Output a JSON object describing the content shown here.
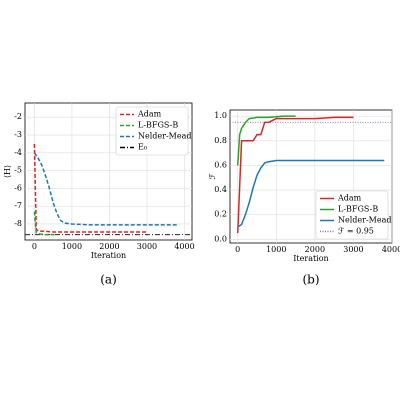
{
  "chart_data": [
    {
      "type": "line",
      "caption": "(a)",
      "x_label": "Iteration",
      "y_label": "⟨H⟩",
      "dashed": true,
      "legend": "upper right",
      "xlim": [
        -250,
        4200
      ],
      "xticks": [
        0,
        1000,
        2000,
        3000,
        4000
      ],
      "ylim": [
        -8.9,
        -1.2
      ],
      "yticks": [
        -2,
        -3,
        -4,
        -5,
        -6,
        -7,
        -8
      ],
      "series": [
        {
          "name": "Adam",
          "color": "#d62728",
          "x": [
            0,
            50,
            100,
            200,
            500,
            1000,
            2000,
            3000
          ],
          "values": [
            -3.5,
            -8.3,
            -8.4,
            -8.4,
            -8.45,
            -8.45,
            -8.45,
            -8.45
          ]
        },
        {
          "name": "L-BFGS-B",
          "color": "#2ca02c",
          "x": [
            0,
            50,
            100,
            300,
            600
          ],
          "values": [
            -7.3,
            -8.5,
            -8.55,
            -8.6,
            -8.6
          ]
        },
        {
          "name": "Nelder-Mead",
          "color": "#1f77b4",
          "x": [
            0,
            100,
            200,
            300,
            400,
            500,
            600,
            700,
            800,
            1000,
            1500,
            2000,
            3000,
            3800
          ],
          "values": [
            -4.0,
            -4.3,
            -4.7,
            -5.3,
            -6.0,
            -6.8,
            -7.4,
            -7.8,
            -7.95,
            -8.0,
            -8.05,
            -8.05,
            -8.05,
            -8.05
          ]
        }
      ],
      "reference_line": {
        "name": "E₀",
        "value": -8.6,
        "color": "#000000",
        "style": "dashdot"
      }
    },
    {
      "type": "line",
      "caption": "(b)",
      "x_label": "Iteration",
      "y_label": "ℱ",
      "dashed": false,
      "legend": "lower right",
      "xlim": [
        -200,
        4000
      ],
      "xticks": [
        0,
        1000,
        2000,
        3000,
        4000
      ],
      "ylim": [
        -0.03,
        1.05
      ],
      "yticks": [
        {
          "value": 0,
          "label": "0.0"
        },
        0.2,
        0.4,
        0.6,
        0.8,
        {
          "value": 1,
          "label": "1.0"
        }
      ],
      "series": [
        {
          "name": "Adam",
          "color": "#d62728",
          "x": [
            0,
            100,
            200,
            400,
            500,
            600,
            700,
            800,
            1000,
            1500,
            2000,
            2500,
            3000
          ],
          "values": [
            0.05,
            0.8,
            0.8,
            0.8,
            0.85,
            0.85,
            0.95,
            0.95,
            0.98,
            0.98,
            0.98,
            0.99,
            0.99
          ]
        },
        {
          "name": "L-BFGS-B",
          "color": "#2ca02c",
          "x": [
            0,
            50,
            100,
            200,
            300,
            500,
            800,
            1200,
            1500
          ],
          "values": [
            0.6,
            0.85,
            0.9,
            0.95,
            0.98,
            0.99,
            0.99,
            1.0,
            1.0
          ]
        },
        {
          "name": "Nelder-Mead",
          "color": "#1f77b4",
          "x": [
            0,
            100,
            200,
            300,
            400,
            500,
            600,
            700,
            800,
            1000,
            1500,
            2000,
            3000,
            3800
          ],
          "values": [
            0.1,
            0.12,
            0.2,
            0.3,
            0.42,
            0.52,
            0.58,
            0.62,
            0.63,
            0.64,
            0.64,
            0.64,
            0.64,
            0.64
          ]
        }
      ],
      "reference_line": {
        "name": "ℱ = 0.95",
        "value": 0.95,
        "color": "#9467bd",
        "style": "dotted"
      }
    }
  ]
}
